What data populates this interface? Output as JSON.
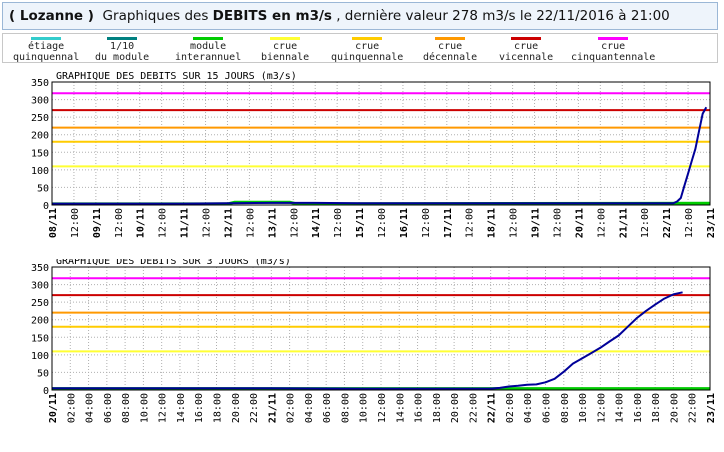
{
  "header": {
    "station": "( Lozanne )",
    "pre": "  Graphiques des ",
    "bold": "DEBITS en m3/s",
    "post": " , dernière valeur 278 m3/s le 22/11/2016 à 21:00"
  },
  "legend": [
    {
      "l1": "étiage",
      "l2": "quinquennal",
      "color": "#33cccc"
    },
    {
      "l1": "1/10",
      "l2": "du module",
      "color": "#008080"
    },
    {
      "l1": "module",
      "l2": "interannuel",
      "color": "#00cc00"
    },
    {
      "l1": "crue",
      "l2": "biennale",
      "color": "#ffff33"
    },
    {
      "l1": "crue",
      "l2": "quinquennale",
      "color": "#ffcc00"
    },
    {
      "l1": "crue",
      "l2": "décennale",
      "color": "#ff9900"
    },
    {
      "l1": "crue",
      "l2": "vicennale",
      "color": "#cc0000"
    },
    {
      "l1": "crue",
      "l2": "cinquantennale",
      "color": "#ff00ff"
    }
  ],
  "chart_data": [
    {
      "type": "line",
      "title": "GRAPHIQUE DES DEBITS SUR 15 JOURS (m3/s)",
      "ylim": [
        0,
        350
      ],
      "yticks": [
        0,
        50,
        100,
        150,
        200,
        250,
        300,
        350
      ],
      "xlim_hours": [
        0,
        360
      ],
      "xtick_labels": [
        "08/11",
        "12:00",
        "09/11",
        "12:00",
        "10/11",
        "12:00",
        "11/11",
        "12:00",
        "12/11",
        "12:00",
        "13/11",
        "12:00",
        "14/11",
        "12:00",
        "15/11",
        "12:00",
        "16/11",
        "12:00",
        "17/11",
        "12:00",
        "18/11",
        "12:00",
        "19/11",
        "12:00",
        "20/11",
        "12:00",
        "21/11",
        "12:00",
        "22/11",
        "12:00",
        "23/11"
      ],
      "xtick_step_hours": 12,
      "thresholds": [
        {
          "name": "crue biennale",
          "value": 110,
          "color": "#ffff33"
        },
        {
          "name": "crue quinquennale",
          "value": 180,
          "color": "#ffcc00"
        },
        {
          "name": "crue décennale",
          "value": 220,
          "color": "#ff9900"
        },
        {
          "name": "crue vicennale",
          "value": 270,
          "color": "#cc0000"
        },
        {
          "name": "crue cinquantennale",
          "value": 318,
          "color": "#ff00ff"
        }
      ],
      "series": [
        {
          "role": "module interannuel",
          "color": "#00cc00",
          "x": [
            0,
            96,
            100,
            130,
            134,
            360
          ],
          "y": [
            3,
            3,
            8,
            8,
            3,
            5
          ]
        },
        {
          "role": "debit",
          "color": "#000099",
          "x": [
            0,
            48,
            72,
            96,
            120,
            144,
            168,
            216,
            264,
            312,
            336,
            340,
            342,
            344,
            346,
            348,
            350,
            352,
            354,
            356,
            358
          ],
          "y": [
            4,
            4,
            4,
            5,
            6,
            6,
            5,
            5,
            5,
            5,
            5,
            5,
            10,
            20,
            55,
            90,
            125,
            160,
            210,
            260,
            278
          ]
        }
      ]
    },
    {
      "type": "line",
      "title": "GRAPHIQUE DES DEBITS SUR 3 JOURS (m3/s)",
      "ylim": [
        0,
        350
      ],
      "yticks": [
        0,
        50,
        100,
        150,
        200,
        250,
        300,
        350
      ],
      "xlim_hours": [
        0,
        72
      ],
      "xtick_labels": [
        "20/11",
        "02:00",
        "04:00",
        "06:00",
        "08:00",
        "10:00",
        "12:00",
        "14:00",
        "16:00",
        "18:00",
        "20:00",
        "22:00",
        "21/11",
        "02:00",
        "04:00",
        "06:00",
        "08:00",
        "10:00",
        "12:00",
        "14:00",
        "16:00",
        "18:00",
        "20:00",
        "22:00",
        "22/11",
        "02:00",
        "04:00",
        "06:00",
        "08:00",
        "10:00",
        "12:00",
        "14:00",
        "16:00",
        "18:00",
        "20:00",
        "22:00",
        "23/11"
      ],
      "xtick_step_hours": 2,
      "thresholds": [
        {
          "name": "crue biennale",
          "value": 110,
          "color": "#ffff33"
        },
        {
          "name": "crue quinquennale",
          "value": 180,
          "color": "#ffcc00"
        },
        {
          "name": "crue décennale",
          "value": 220,
          "color": "#ff9900"
        },
        {
          "name": "crue vicennale",
          "value": 270,
          "color": "#cc0000"
        },
        {
          "name": "crue cinquantennale",
          "value": 318,
          "color": "#ff00ff"
        }
      ],
      "series": [
        {
          "role": "module interannuel",
          "color": "#00cc00",
          "x": [
            0,
            72
          ],
          "y": [
            4,
            4
          ]
        },
        {
          "role": "debit",
          "color": "#000099",
          "x": [
            0,
            24,
            34,
            48,
            49,
            50,
            51,
            52,
            53,
            54,
            55,
            56,
            57,
            58,
            59,
            60,
            61,
            62,
            63,
            64,
            65,
            66,
            67,
            68,
            69
          ],
          "y": [
            5,
            5,
            4,
            4,
            6,
            10,
            12,
            15,
            16,
            22,
            32,
            52,
            75,
            90,
            105,
            120,
            138,
            155,
            180,
            205,
            225,
            243,
            260,
            272,
            278
          ]
        }
      ]
    }
  ]
}
